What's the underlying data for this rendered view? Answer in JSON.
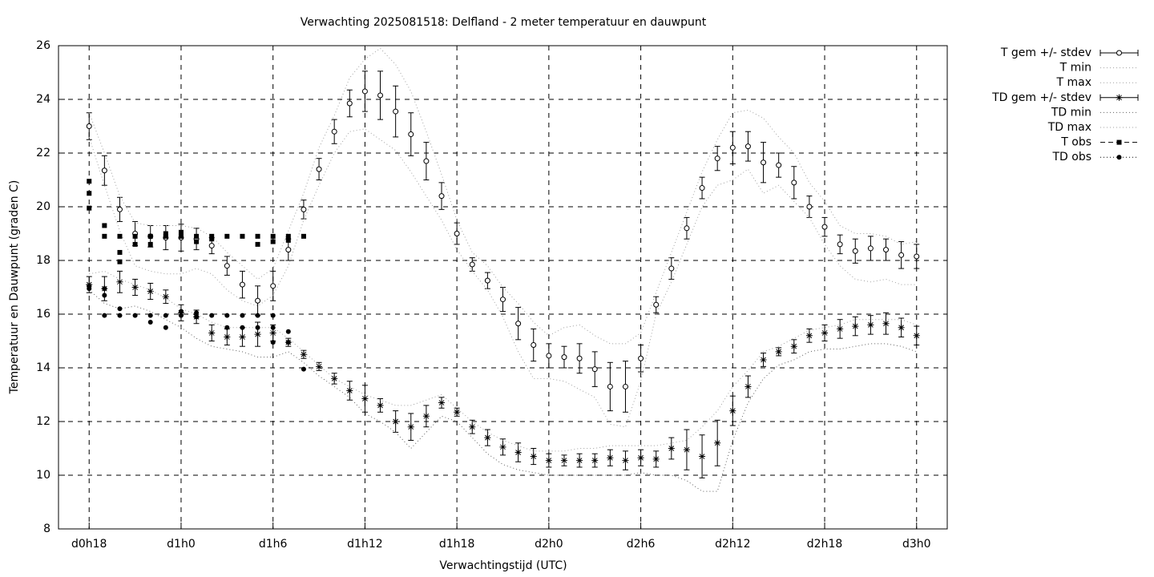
{
  "chart_data": {
    "type": "errorbar-line",
    "title": "Verwachting 2025081518: Delfland - 2 meter temperatuur en dauwpunt",
    "xlabel": "Verwachtingstijd (UTC)",
    "ylabel": "Temperatuur en Dauwpunt (graden C)",
    "xlim": [
      16,
      74
    ],
    "xticks": [
      {
        "value": 18,
        "label": "d0h18"
      },
      {
        "value": 24,
        "label": "d1h0"
      },
      {
        "value": 30,
        "label": "d1h6"
      },
      {
        "value": 36,
        "label": "d1h12"
      },
      {
        "value": 42,
        "label": "d1h18"
      },
      {
        "value": 48,
        "label": "d2h0"
      },
      {
        "value": 54,
        "label": "d2h6"
      },
      {
        "value": 60,
        "label": "d2h12"
      },
      {
        "value": 66,
        "label": "d2h18"
      },
      {
        "value": 72,
        "label": "d3h0"
      }
    ],
    "ylim": [
      8,
      26
    ],
    "yticks": [
      8,
      10,
      12,
      14,
      16,
      18,
      20,
      22,
      24,
      26
    ],
    "grid": true,
    "legend": "outside-top-right",
    "x": [
      18,
      19,
      20,
      21,
      22,
      23,
      24,
      25,
      26,
      27,
      28,
      29,
      30,
      31,
      32,
      33,
      34,
      35,
      36,
      37,
      38,
      39,
      40,
      41,
      42,
      43,
      44,
      45,
      46,
      47,
      48,
      49,
      50,
      51,
      52,
      53,
      54,
      55,
      56,
      57,
      58,
      59,
      60,
      61,
      62,
      63,
      64,
      65,
      66,
      67,
      68,
      69,
      70,
      71,
      72
    ],
    "series": [
      {
        "name": "T gem +/- stdev",
        "color": "#000000",
        "marker": "circle",
        "line": "errorbar",
        "values": [
          23.0,
          21.35,
          19.9,
          19.0,
          18.9,
          18.85,
          18.85,
          18.8,
          18.55,
          17.8,
          17.1,
          16.5,
          17.05,
          18.4,
          19.9,
          21.4,
          22.8,
          23.85,
          24.3,
          24.15,
          23.55,
          22.7,
          21.7,
          20.4,
          19.0,
          17.85,
          17.25,
          16.55,
          15.65,
          14.85,
          14.45,
          14.4,
          14.35,
          13.95,
          13.3,
          13.3,
          14.35,
          16.35,
          17.7,
          19.2,
          20.7,
          21.8,
          22.2,
          22.25,
          21.65,
          21.55,
          20.9,
          20.0,
          19.25,
          18.6,
          18.35,
          18.45,
          18.4,
          18.2,
          18.15
        ],
        "errors": [
          0.5,
          0.55,
          0.45,
          0.45,
          0.4,
          0.45,
          0.5,
          0.4,
          0.3,
          0.35,
          0.5,
          0.55,
          0.55,
          0.4,
          0.35,
          0.4,
          0.45,
          0.5,
          0.75,
          0.9,
          0.95,
          0.8,
          0.7,
          0.5,
          0.4,
          0.25,
          0.3,
          0.45,
          0.6,
          0.6,
          0.45,
          0.4,
          0.55,
          0.65,
          0.9,
          0.95,
          0.5,
          0.3,
          0.4,
          0.4,
          0.4,
          0.45,
          0.6,
          0.55,
          0.75,
          0.45,
          0.6,
          0.4,
          0.35,
          0.35,
          0.45,
          0.45,
          0.4,
          0.5,
          0.45
        ]
      },
      {
        "name": "T min",
        "color": "#a0a0a0",
        "line": "dotted",
        "values": [
          22.6,
          20.8,
          19.1,
          17.8,
          17.6,
          17.5,
          17.5,
          17.7,
          17.5,
          16.9,
          16.5,
          16.3,
          16.7,
          17.8,
          19.5,
          20.8,
          22.0,
          22.8,
          22.9,
          22.5,
          22.1,
          21.3,
          20.4,
          19.5,
          18.4,
          17.6,
          16.9,
          15.9,
          14.6,
          13.6,
          13.6,
          13.5,
          13.2,
          12.9,
          11.9,
          11.8,
          13.5,
          16.0,
          17.2,
          18.6,
          20.0,
          20.8,
          21.0,
          21.4,
          20.5,
          20.8,
          20.2,
          19.6,
          18.6,
          17.8,
          17.3,
          17.2,
          17.3,
          17.1,
          17.1
        ]
      },
      {
        "name": "T max",
        "color": "#a0a0a0",
        "line": "dotted",
        "values": [
          23.5,
          22.0,
          20.4,
          19.4,
          19.3,
          19.3,
          19.3,
          19.2,
          18.9,
          18.3,
          17.8,
          17.3,
          17.7,
          19.1,
          20.5,
          22.2,
          23.4,
          24.8,
          25.5,
          25.9,
          25.3,
          24.3,
          22.8,
          21.2,
          19.5,
          18.3,
          17.8,
          17.0,
          16.4,
          15.7,
          15.2,
          15.5,
          15.6,
          15.2,
          14.9,
          14.9,
          15.3,
          16.8,
          18.3,
          19.8,
          21.3,
          22.5,
          23.5,
          23.6,
          23.3,
          22.6,
          22.0,
          20.9,
          20.2,
          19.3,
          19.0,
          19.0,
          18.9,
          18.6,
          18.7
        ]
      },
      {
        "name": "TD gem +/- stdev",
        "color": "#000000",
        "marker": "star",
        "line": "errorbar",
        "values": [
          17.1,
          16.95,
          17.2,
          17.0,
          16.85,
          16.65,
          16.05,
          15.9,
          15.3,
          15.15,
          15.15,
          15.25,
          15.3,
          14.95,
          14.5,
          14.05,
          13.6,
          13.15,
          12.85,
          12.6,
          12.0,
          11.8,
          12.2,
          12.7,
          12.35,
          11.8,
          11.4,
          11.05,
          10.85,
          10.7,
          10.55,
          10.55,
          10.55,
          10.55,
          10.65,
          10.55,
          10.65,
          10.6,
          11.0,
          10.95,
          10.7,
          11.2,
          12.4,
          13.3,
          14.3,
          14.6,
          14.8,
          15.2,
          15.3,
          15.45,
          15.55,
          15.6,
          15.65,
          15.5,
          15.2
        ],
        "errors": [
          0.3,
          0.45,
          0.4,
          0.3,
          0.3,
          0.25,
          0.3,
          0.25,
          0.3,
          0.3,
          0.35,
          0.45,
          0.3,
          0.15,
          0.15,
          0.15,
          0.2,
          0.35,
          0.5,
          0.25,
          0.4,
          0.5,
          0.4,
          0.2,
          0.15,
          0.25,
          0.3,
          0.3,
          0.35,
          0.3,
          0.25,
          0.2,
          0.25,
          0.25,
          0.3,
          0.35,
          0.3,
          0.3,
          0.4,
          0.75,
          0.8,
          0.85,
          0.55,
          0.4,
          0.25,
          0.15,
          0.25,
          0.25,
          0.3,
          0.35,
          0.35,
          0.35,
          0.4,
          0.35,
          0.35
        ]
      },
      {
        "name": "TD min",
        "color": "#606060",
        "line": "dotted",
        "values": [
          16.9,
          16.4,
          16.2,
          16.3,
          16.1,
          15.8,
          15.5,
          15.1,
          14.8,
          14.7,
          14.6,
          14.4,
          14.4,
          14.6,
          14.2,
          13.7,
          13.3,
          12.9,
          12.3,
          12.0,
          11.6,
          11.0,
          11.6,
          12.2,
          12.0,
          11.4,
          10.8,
          10.4,
          10.2,
          10.1,
          10.0,
          10.0,
          10.0,
          10.0,
          10.0,
          10.0,
          10.1,
          10.0,
          10.0,
          9.8,
          9.4,
          9.4,
          11.3,
          12.7,
          13.6,
          14.1,
          14.3,
          14.6,
          14.7,
          14.7,
          14.8,
          14.9,
          14.9,
          14.8,
          14.6
        ]
      },
      {
        "name": "TD max",
        "color": "#a0a0a0",
        "line": "dotted",
        "values": [
          17.5,
          17.6,
          17.3,
          17.1,
          16.9,
          16.6,
          16.2,
          16.0,
          15.7,
          15.5,
          15.5,
          15.5,
          15.5,
          15.1,
          14.6,
          14.1,
          13.6,
          13.3,
          13.0,
          12.8,
          12.6,
          12.6,
          12.8,
          13.0,
          12.5,
          12.0,
          11.6,
          11.3,
          11.1,
          10.9,
          10.9,
          10.9,
          11.0,
          11.0,
          11.1,
          11.1,
          11.1,
          11.1,
          11.2,
          11.3,
          11.8,
          12.4,
          13.3,
          13.9,
          14.6,
          14.8,
          15.1,
          15.4,
          15.5,
          15.6,
          15.8,
          15.8,
          15.8,
          15.8,
          15.6
        ]
      },
      {
        "name": "T obs",
        "color": "#000000",
        "marker": "square",
        "line": "dashed",
        "x": [
          18,
          18,
          18,
          19,
          19,
          20,
          20,
          20,
          21,
          21,
          22,
          22,
          23,
          23,
          24,
          24,
          25,
          25,
          26,
          26,
          27,
          28,
          29,
          29,
          30,
          30,
          31,
          31,
          32
        ],
        "values": [
          20.95,
          20.5,
          19.95,
          19.3,
          18.9,
          18.9,
          18.3,
          17.95,
          18.9,
          18.6,
          18.9,
          18.6,
          19.0,
          18.9,
          19.05,
          18.9,
          18.9,
          18.7,
          18.9,
          18.8,
          18.9,
          18.9,
          18.9,
          18.6,
          18.9,
          18.7,
          18.9,
          18.75,
          18.9
        ]
      },
      {
        "name": "TD obs",
        "color": "#000000",
        "marker": "dot",
        "line": "dotted",
        "x": [
          18,
          18,
          19,
          19,
          19,
          20,
          20,
          21,
          22,
          22,
          23,
          23,
          24,
          24,
          25,
          25,
          26,
          27,
          27,
          28,
          28,
          29,
          29,
          30,
          30,
          30,
          31,
          31,
          32
        ],
        "values": [
          17.05,
          16.95,
          16.95,
          16.7,
          15.95,
          16.2,
          15.95,
          15.95,
          15.95,
          15.7,
          15.95,
          15.5,
          16.1,
          15.95,
          16.05,
          15.9,
          15.95,
          15.95,
          15.5,
          15.95,
          15.5,
          15.95,
          15.5,
          15.95,
          15.5,
          14.95,
          15.35,
          14.95,
          13.95
        ]
      }
    ]
  }
}
